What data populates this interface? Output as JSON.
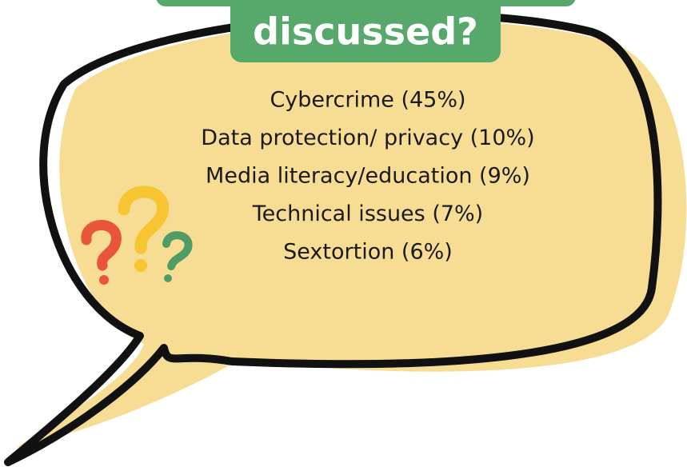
{
  "header": {
    "title": "discussed?"
  },
  "items": [
    "Cybercrime (45%)",
    "Data protection/ privacy (10%)",
    "Media literacy/education (9%)",
    "Technical issues (7%)",
    "Sextortion (6%)"
  ]
}
